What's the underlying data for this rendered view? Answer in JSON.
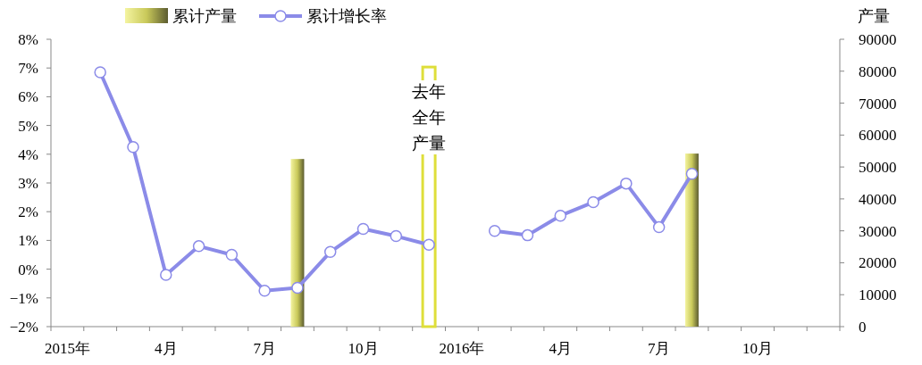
{
  "chart_data": {
    "type": "bar",
    "y2label": "产量",
    "categories": [
      "2015年",
      null,
      null,
      "4月",
      null,
      null,
      "7月",
      null,
      null,
      "10月",
      null,
      null,
      "2016年",
      null,
      null,
      "4月",
      null,
      null,
      "7月",
      null,
      null,
      "10月",
      null,
      null
    ],
    "series": [
      {
        "name": "累计产量",
        "axis": "y2",
        "color": "#c9c95a",
        "values": [
          null,
          null,
          null,
          null,
          null,
          null,
          null,
          52500,
          null,
          null,
          null,
          null,
          null,
          null,
          null,
          null,
          null,
          null,
          null,
          54200,
          null,
          null,
          null,
          null
        ]
      },
      {
        "axis": "y2",
        "color": "#dede3a",
        "values": [
          null,
          null,
          null,
          null,
          null,
          null,
          null,
          null,
          null,
          null,
          null,
          81300,
          null,
          null,
          null,
          null,
          null,
          null,
          null,
          null,
          null,
          null,
          null,
          null
        ]
      },
      {
        "name": "累计增长率",
        "type": "line",
        "axis": "y",
        "color": "#8b8be8",
        "values": [
          null,
          6.85,
          4.25,
          -0.2,
          0.8,
          0.5,
          -0.75,
          -0.65,
          0.6,
          1.4,
          1.15,
          0.85,
          null,
          1.33,
          1.18,
          1.86,
          2.33,
          2.98,
          1.46,
          3.32,
          null,
          null,
          null,
          null
        ]
      }
    ],
    "ylim": [
      -2,
      8
    ],
    "yticks": [
      {
        "value": -2,
        "label": "−2%"
      },
      {
        "value": -1,
        "label": "−1%"
      },
      {
        "value": 0,
        "label": "0%"
      },
      {
        "value": 1,
        "label": "1%"
      },
      {
        "value": 2,
        "label": "2%"
      },
      {
        "value": 3,
        "label": "3%"
      },
      {
        "value": 4,
        "label": "4%"
      },
      {
        "value": 5,
        "label": "5%"
      },
      {
        "value": 6,
        "label": "6%"
      },
      {
        "value": 7,
        "label": "7%"
      },
      {
        "value": 8,
        "label": "8%"
      }
    ],
    "y2lim": [
      0,
      90000
    ],
    "y2ticks": [
      0,
      10000,
      20000,
      30000,
      40000,
      50000,
      60000,
      70000,
      80000,
      90000
    ],
    "annotations": [
      "去年全年产量"
    ],
    "legend": "top",
    "marker": "circle",
    "grid": false
  }
}
